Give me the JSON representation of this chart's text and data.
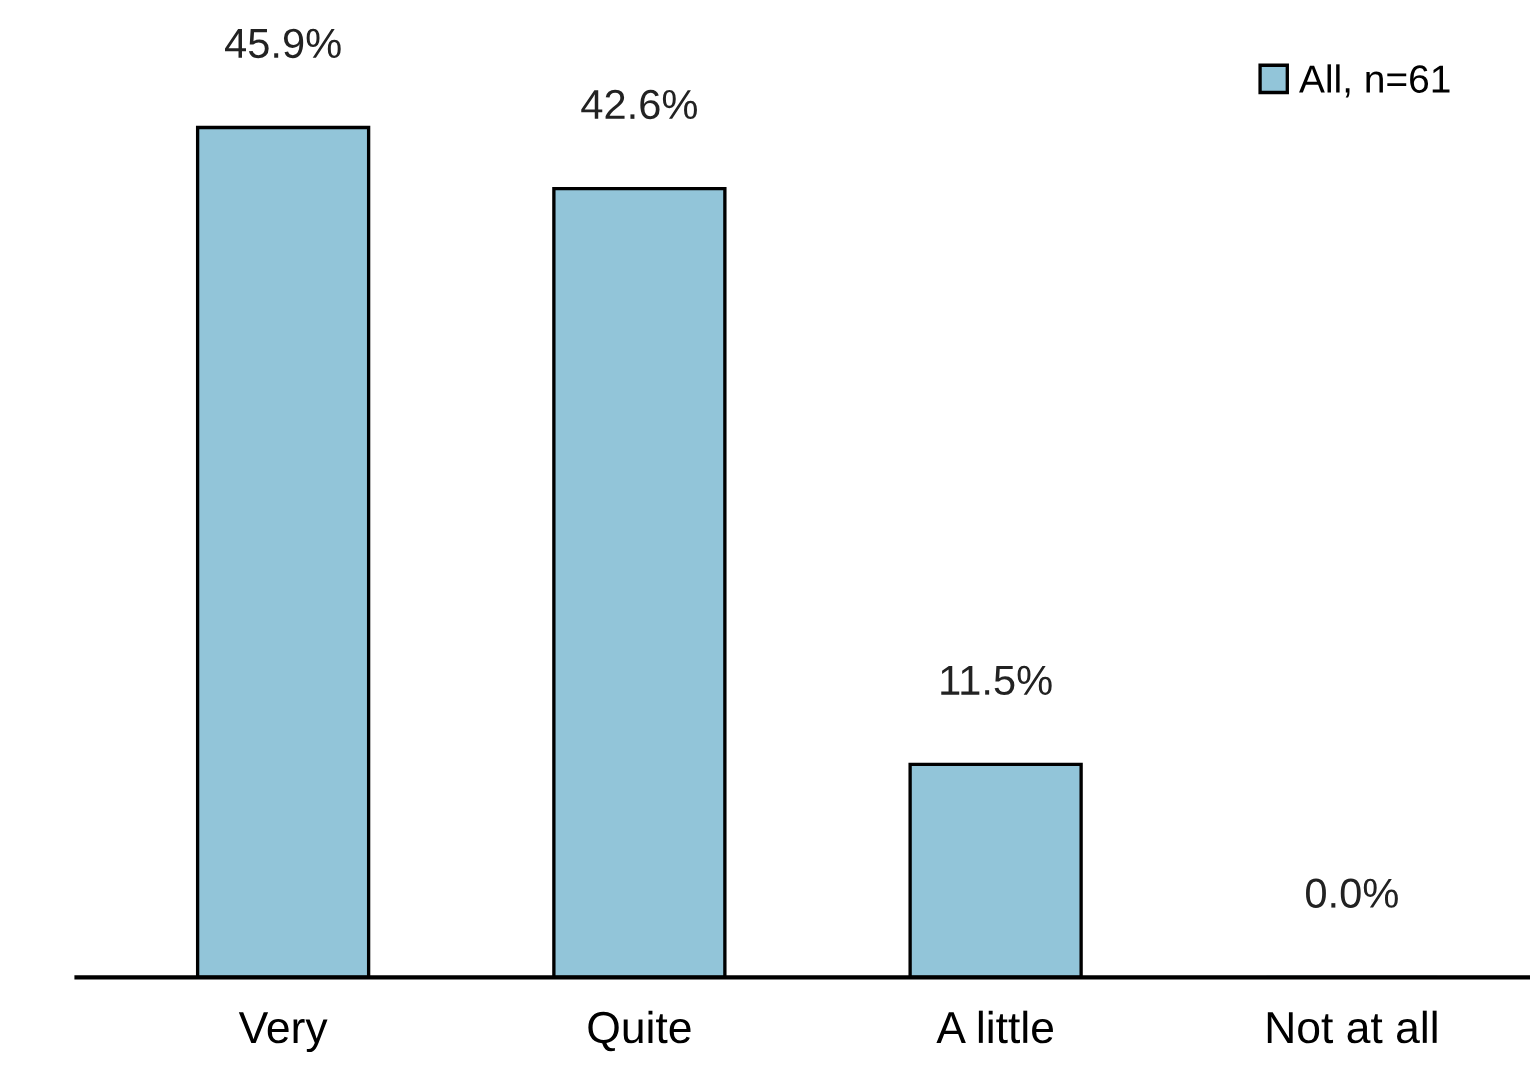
{
  "chart_data": {
    "type": "bar",
    "categories": [
      "Very",
      "Quite",
      "A little",
      "Not at all"
    ],
    "series": [
      {
        "name": "All, n=61",
        "color": "#92c5d9",
        "values": [
          45.9,
          42.6,
          11.5,
          0.0
        ],
        "value_labels": [
          "45.9%",
          "42.6%",
          "11.5%",
          "0.0%"
        ]
      }
    ],
    "legend": "top right",
    "grid": false
  }
}
